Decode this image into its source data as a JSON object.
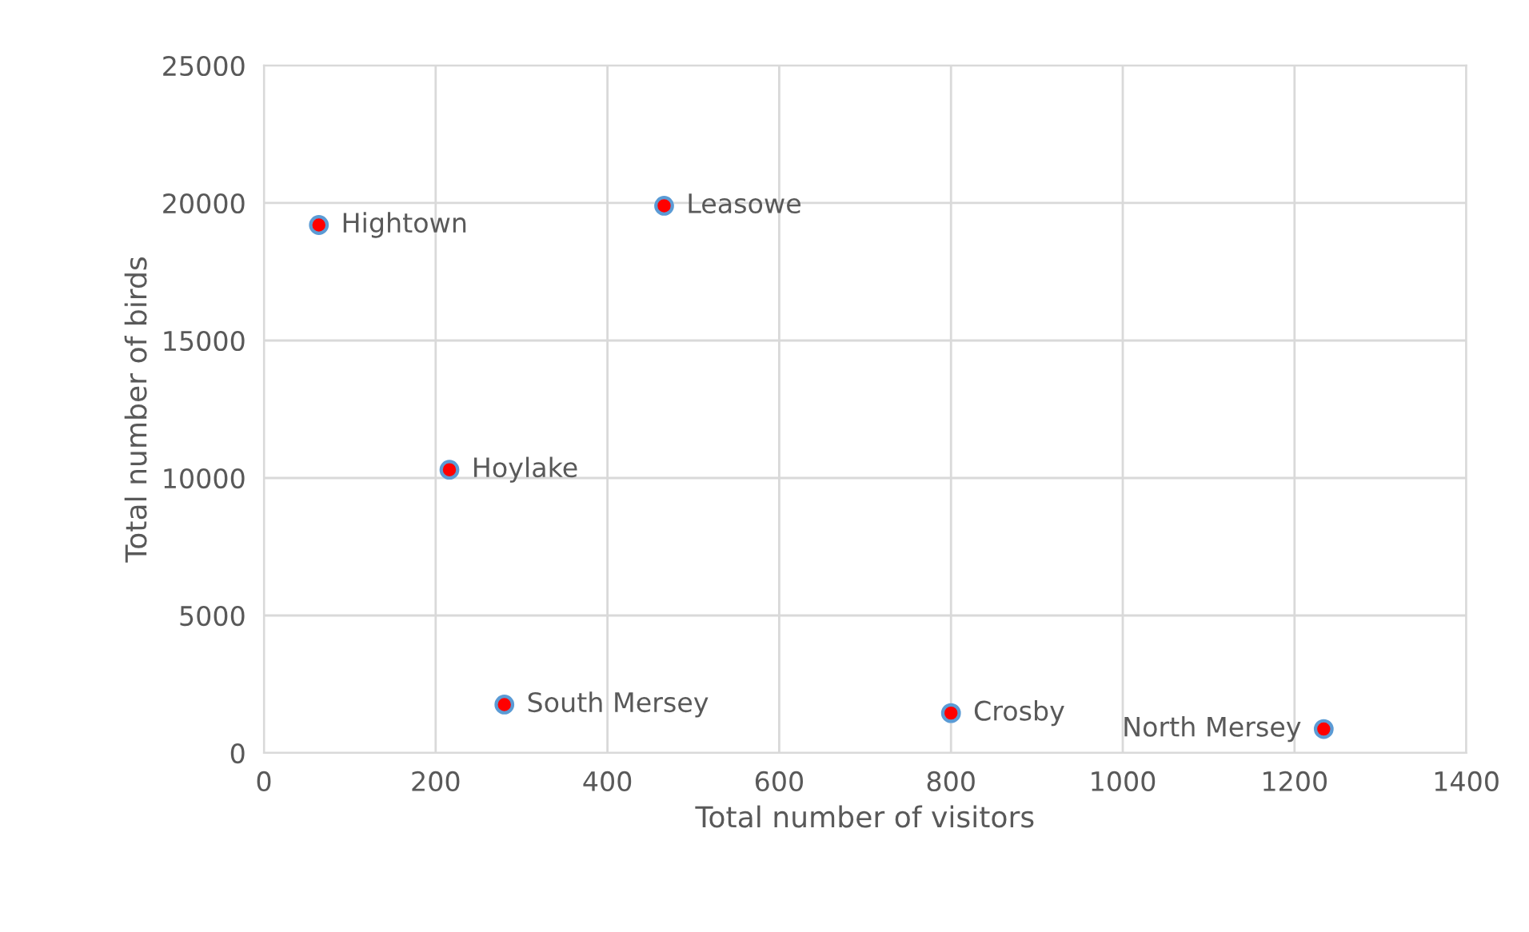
{
  "chart_data": {
    "type": "scatter",
    "xlabel": "Total number of visitors",
    "ylabel": "Total number of birds",
    "series": [
      {
        "color": "#ff0000",
        "x": [
          64,
          466,
          216,
          280,
          800,
          1234
        ],
        "values": [
          19200,
          19900,
          10300,
          1760,
          1450,
          870
        ]
      }
    ],
    "annotations": [
      {
        "text": "Hightown",
        "x": 64,
        "y": 19200
      },
      {
        "text": "Leasowe",
        "x": 466,
        "y": 19900
      },
      {
        "text": "Hoylake",
        "x": 216,
        "y": 10300
      },
      {
        "text": "South Mersey",
        "x": 280,
        "y": 1760
      },
      {
        "text": "Crosby",
        "x": 800,
        "y": 1450
      },
      {
        "text": "North Mersey",
        "x": 1234,
        "y": 870
      }
    ],
    "xlim": [
      0,
      1400
    ],
    "xticks": [
      0,
      200,
      400,
      600,
      800,
      1000,
      1200,
      1400
    ],
    "ylim": [
      0,
      25000
    ],
    "yticks": [
      0,
      5000,
      10000,
      15000,
      20000,
      25000
    ],
    "grid": true,
    "marker": "circle"
  }
}
